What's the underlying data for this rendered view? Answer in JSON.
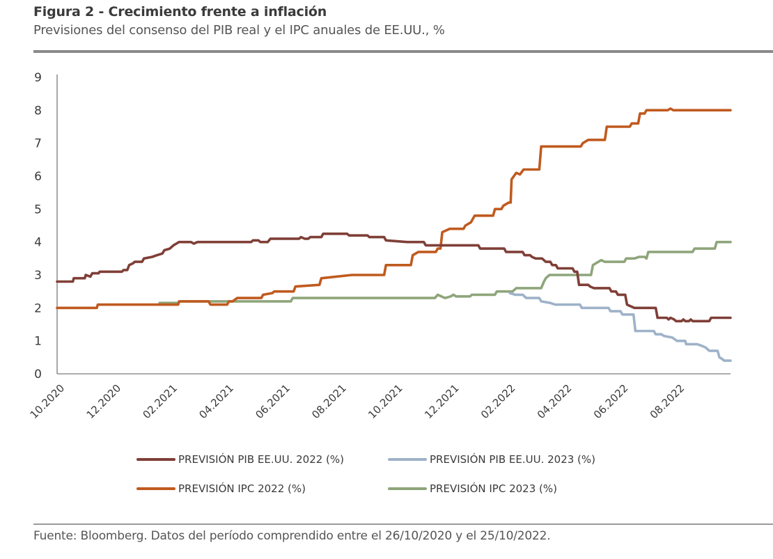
{
  "header": {
    "title": "Figura 2 - Crecimiento frente a inflación",
    "subtitle": "Previsiones del consenso del PIB real y el IPC anuales de EE.UU., %"
  },
  "footer": {
    "source": "Fuente: Bloomberg. Datos del período comprendido entre el 26/10/2020 y el 25/10/2022."
  },
  "chart_data": {
    "type": "line",
    "title": "Figura 2 - Crecimiento frente a inflación",
    "subtitle": "Previsiones del consenso del PIB real y el IPC anuales de EE.UU., %",
    "xlabel": "",
    "ylabel": "",
    "x_unit": "days since 26/10/2020",
    "x_range": [
      0,
      729
    ],
    "ylim": [
      0,
      9
    ],
    "yticks": [
      0,
      1,
      2,
      3,
      4,
      5,
      6,
      7,
      8,
      9
    ],
    "xticks": [
      {
        "label": "10.2020",
        "day": 0
      },
      {
        "label": "12.2020",
        "day": 61
      },
      {
        "label": "02.2021",
        "day": 122
      },
      {
        "label": "04.2021",
        "day": 183
      },
      {
        "label": "06.2021",
        "day": 244
      },
      {
        "label": "08.2021",
        "day": 305
      },
      {
        "label": "10.2021",
        "day": 366
      },
      {
        "label": "12.2021",
        "day": 427
      },
      {
        "label": "02.2022",
        "day": 488
      },
      {
        "label": "04.2022",
        "day": 549
      },
      {
        "label": "06.2022",
        "day": 610
      },
      {
        "label": "08.2022",
        "day": 671
      }
    ],
    "grid": false,
    "legend_position": "bottom",
    "series": [
      {
        "name": "PREVISIÓN PIB EE.UU. 2022 (%)",
        "color": "#7f3f37",
        "points": [
          [
            0,
            2.8
          ],
          [
            17,
            2.8
          ],
          [
            18,
            2.9
          ],
          [
            30,
            2.9
          ],
          [
            31,
            3.0
          ],
          [
            36,
            2.95
          ],
          [
            38,
            3.05
          ],
          [
            45,
            3.05
          ],
          [
            46,
            3.1
          ],
          [
            70,
            3.1
          ],
          [
            72,
            3.15
          ],
          [
            76,
            3.15
          ],
          [
            78,
            3.3
          ],
          [
            82,
            3.35
          ],
          [
            84,
            3.4
          ],
          [
            92,
            3.4
          ],
          [
            94,
            3.5
          ],
          [
            103,
            3.55
          ],
          [
            108,
            3.6
          ],
          [
            114,
            3.65
          ],
          [
            116,
            3.75
          ],
          [
            122,
            3.8
          ],
          [
            126,
            3.9
          ],
          [
            132,
            4.0
          ],
          [
            145,
            4.0
          ],
          [
            148,
            3.95
          ],
          [
            152,
            4.0
          ],
          [
            210,
            4.0
          ],
          [
            212,
            4.05
          ],
          [
            218,
            4.05
          ],
          [
            220,
            4.0
          ],
          [
            228,
            4.0
          ],
          [
            231,
            4.1
          ],
          [
            262,
            4.1
          ],
          [
            264,
            4.15
          ],
          [
            268,
            4.1
          ],
          [
            272,
            4.1
          ],
          [
            274,
            4.15
          ],
          [
            286,
            4.15
          ],
          [
            288,
            4.25
          ],
          [
            314,
            4.25
          ],
          [
            316,
            4.2
          ],
          [
            336,
            4.2
          ],
          [
            338,
            4.15
          ],
          [
            354,
            4.15
          ],
          [
            356,
            4.05
          ],
          [
            379,
            4.0
          ],
          [
            382,
            4.0
          ],
          [
            397,
            4.0
          ],
          [
            399,
            3.9
          ],
          [
            434,
            3.9
          ],
          [
            436,
            3.9
          ],
          [
            456,
            3.9
          ],
          [
            458,
            3.8
          ],
          [
            474,
            3.8
          ],
          [
            476,
            3.8
          ],
          [
            484,
            3.8
          ],
          [
            486,
            3.7
          ],
          [
            504,
            3.7
          ],
          [
            506,
            3.6
          ],
          [
            512,
            3.6
          ],
          [
            514,
            3.55
          ],
          [
            518,
            3.5
          ],
          [
            525,
            3.5
          ],
          [
            529,
            3.4
          ],
          [
            534,
            3.4
          ],
          [
            536,
            3.3
          ],
          [
            540,
            3.3
          ],
          [
            542,
            3.2
          ],
          [
            558,
            3.2
          ],
          [
            560,
            3.1
          ],
          [
            563,
            3.1
          ],
          [
            565,
            2.7
          ],
          [
            575,
            2.7
          ],
          [
            577,
            2.65
          ],
          [
            581,
            2.6
          ],
          [
            598,
            2.6
          ],
          [
            600,
            2.5
          ],
          [
            605,
            2.5
          ],
          [
            607,
            2.4
          ],
          [
            615,
            2.4
          ],
          [
            617,
            2.1
          ],
          [
            625,
            2.0
          ],
          [
            648,
            2.0
          ],
          [
            650,
            1.7
          ],
          [
            660,
            1.7
          ],
          [
            662,
            1.65
          ],
          [
            664,
            1.7
          ],
          [
            668,
            1.65
          ],
          [
            670,
            1.6
          ],
          [
            676,
            1.6
          ],
          [
            678,
            1.65
          ],
          [
            680,
            1.6
          ],
          [
            684,
            1.6
          ],
          [
            686,
            1.65
          ],
          [
            688,
            1.6
          ],
          [
            706,
            1.6
          ],
          [
            708,
            1.7
          ],
          [
            729,
            1.7
          ]
        ]
      },
      {
        "name": "PREVISIÓN PIB EE.UU. 2023 (%)",
        "color": "#9eb2c8",
        "points": [
          [
            490,
            2.45
          ],
          [
            496,
            2.4
          ],
          [
            504,
            2.4
          ],
          [
            508,
            2.3
          ],
          [
            522,
            2.3
          ],
          [
            524,
            2.2
          ],
          [
            534,
            2.15
          ],
          [
            539,
            2.1
          ],
          [
            566,
            2.1
          ],
          [
            568,
            2.0
          ],
          [
            597,
            2.0
          ],
          [
            599,
            1.9
          ],
          [
            610,
            1.9
          ],
          [
            612,
            1.8
          ],
          [
            624,
            1.8
          ],
          [
            626,
            1.3
          ],
          [
            646,
            1.3
          ],
          [
            648,
            1.2
          ],
          [
            652,
            1.2
          ],
          [
            654,
            1.2
          ],
          [
            657,
            1.15
          ],
          [
            666,
            1.1
          ],
          [
            671,
            1.0
          ],
          [
            680,
            1.0
          ],
          [
            681,
            0.9
          ],
          [
            693,
            0.9
          ],
          [
            698,
            0.85
          ],
          [
            702,
            0.8
          ],
          [
            706,
            0.7
          ],
          [
            715,
            0.7
          ],
          [
            717,
            0.5
          ],
          [
            720,
            0.45
          ],
          [
            722,
            0.4
          ],
          [
            729,
            0.4
          ]
        ]
      },
      {
        "name": "PREVISIÓN IPC 2022 (%)",
        "color": "#c05a1f",
        "points": [
          [
            0,
            2.0
          ],
          [
            43,
            2.0
          ],
          [
            44,
            2.1
          ],
          [
            131,
            2.1
          ],
          [
            132,
            2.2
          ],
          [
            164,
            2.2
          ],
          [
            166,
            2.1
          ],
          [
            184,
            2.1
          ],
          [
            186,
            2.2
          ],
          [
            190,
            2.2
          ],
          [
            195,
            2.3
          ],
          [
            221,
            2.3
          ],
          [
            223,
            2.4
          ],
          [
            233,
            2.45
          ],
          [
            235,
            2.5
          ],
          [
            256,
            2.5
          ],
          [
            258,
            2.65
          ],
          [
            284,
            2.7
          ],
          [
            286,
            2.9
          ],
          [
            319,
            3.0
          ],
          [
            354,
            3.0
          ],
          [
            356,
            3.3
          ],
          [
            383,
            3.3
          ],
          [
            385,
            3.6
          ],
          [
            391,
            3.7
          ],
          [
            410,
            3.7
          ],
          [
            412,
            3.8
          ],
          [
            415,
            3.8
          ],
          [
            417,
            4.3
          ],
          [
            425,
            4.4
          ],
          [
            440,
            4.4
          ],
          [
            442,
            4.5
          ],
          [
            448,
            4.6
          ],
          [
            452,
            4.8
          ],
          [
            472,
            4.8
          ],
          [
            474,
            5.0
          ],
          [
            481,
            5.0
          ],
          [
            483,
            5.1
          ],
          [
            489,
            5.2
          ],
          [
            491,
            5.2
          ],
          [
            492,
            5.9
          ],
          [
            497,
            6.1
          ],
          [
            501,
            6.05
          ],
          [
            505,
            6.2
          ],
          [
            522,
            6.2
          ],
          [
            524,
            6.9
          ],
          [
            567,
            6.9
          ],
          [
            569,
            7.0
          ],
          [
            575,
            7.1
          ],
          [
            593,
            7.1
          ],
          [
            595,
            7.5
          ],
          [
            620,
            7.5
          ],
          [
            622,
            7.6
          ],
          [
            629,
            7.6
          ],
          [
            631,
            7.9
          ],
          [
            636,
            7.9
          ],
          [
            638,
            8.0
          ],
          [
            661,
            8.0
          ],
          [
            664,
            8.05
          ],
          [
            667,
            8.0
          ],
          [
            729,
            8.0
          ]
        ]
      },
      {
        "name": "PREVISIÓN IPC 2023 (%)",
        "color": "#8ea57a",
        "points": [
          [
            111,
            2.15
          ],
          [
            131,
            2.15
          ],
          [
            133,
            2.2
          ],
          [
            253,
            2.2
          ],
          [
            255,
            2.3
          ],
          [
            409,
            2.3
          ],
          [
            412,
            2.4
          ],
          [
            416,
            2.35
          ],
          [
            420,
            2.3
          ],
          [
            426,
            2.35
          ],
          [
            429,
            2.4
          ],
          [
            432,
            2.35
          ],
          [
            447,
            2.35
          ],
          [
            449,
            2.4
          ],
          [
            474,
            2.4
          ],
          [
            476,
            2.5
          ],
          [
            493,
            2.5
          ],
          [
            497,
            2.6
          ],
          [
            524,
            2.6
          ],
          [
            527,
            2.8
          ],
          [
            529,
            2.9
          ],
          [
            533,
            3.0
          ],
          [
            578,
            3.0
          ],
          [
            580,
            3.3
          ],
          [
            586,
            3.4
          ],
          [
            589,
            3.45
          ],
          [
            593,
            3.4
          ],
          [
            614,
            3.4
          ],
          [
            616,
            3.5
          ],
          [
            625,
            3.5
          ],
          [
            630,
            3.55
          ],
          [
            636,
            3.55
          ],
          [
            638,
            3.5
          ],
          [
            640,
            3.7
          ],
          [
            688,
            3.7
          ],
          [
            690,
            3.8
          ],
          [
            712,
            3.8
          ],
          [
            714,
            4.0
          ],
          [
            729,
            4.0
          ]
        ]
      }
    ]
  }
}
